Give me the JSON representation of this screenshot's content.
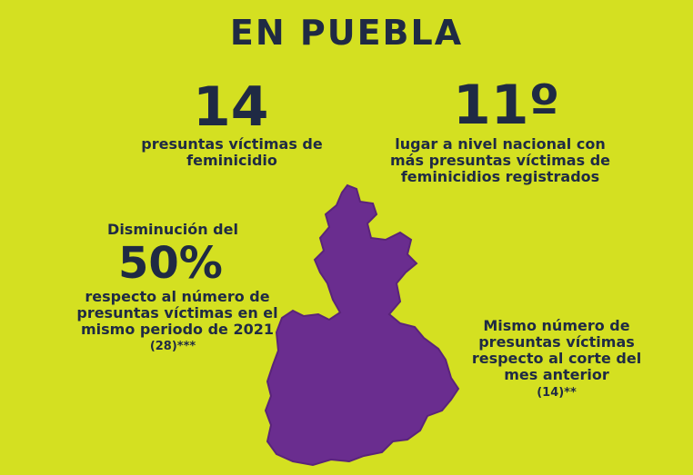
{
  "header": {
    "title": "EN PUEBLA"
  },
  "stats": {
    "victims": {
      "value": "14",
      "label": "presuntas víctimas de feminicidio"
    },
    "rank": {
      "value": "11º",
      "label": "lugar a nivel nacional con más presuntas víctimas de feminicidios registrados"
    },
    "decrease": {
      "intro": "Disminución del",
      "value": "50%",
      "label": "respecto al número de presuntas víctimas en el mismo periodo de 2021",
      "note": "(28)***"
    },
    "same": {
      "label": "Mismo número de presuntas víctimas respecto al corte del mes anterior",
      "note": "(14)**"
    }
  },
  "colors": {
    "background": "#d4e021",
    "text": "#1f2a44",
    "map": "#6a2d8f"
  }
}
